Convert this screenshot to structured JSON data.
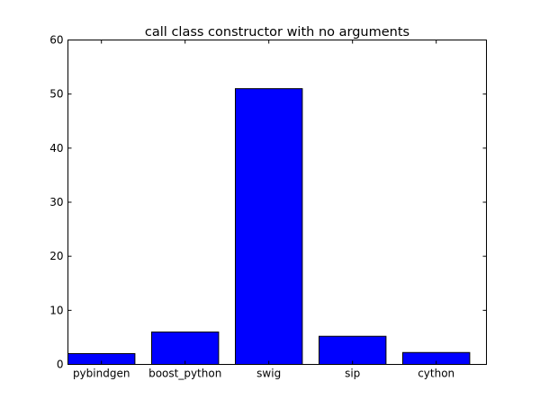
{
  "chart_data": {
    "type": "bar",
    "title": "call class constructor with no arguments",
    "xlabel": "",
    "ylabel": "",
    "categories": [
      "pybindgen",
      "boost_python",
      "swig",
      "sip",
      "cython"
    ],
    "values": [
      2.0,
      6.0,
      51.0,
      5.2,
      2.2
    ],
    "ylim": [
      0,
      60
    ],
    "yticks": [
      0,
      10,
      20,
      30,
      40,
      50,
      60
    ],
    "grid": false,
    "legend": "none",
    "bar_color": "#0000ff",
    "bar_edge_color": "#000000"
  }
}
